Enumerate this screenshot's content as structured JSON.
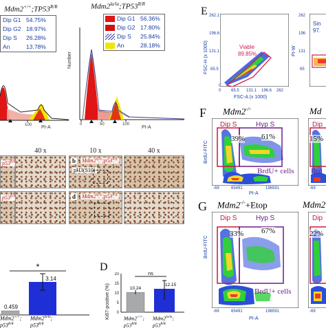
{
  "panelA": {
    "left_genotype": "Mdm2",
    "left_genotype_sup": "+/+",
    "left_genotype_suffix": ";TP53",
    "left_genotype_sup2": "R/R",
    "right_genotype": "Mdm2",
    "right_genotype_sup": "la/la",
    "right_genotype_suffix": ";TP53",
    "right_genotype_sup2": "R/R",
    "left_legend": [
      {
        "label": "Dip G1",
        "value": "54.75%"
      },
      {
        "label": "Dip G2",
        "value": "18.97%"
      },
      {
        "label": "Dip S",
        "value": "26.28%"
      },
      {
        "label": "An",
        "value": "13.78%"
      }
    ],
    "right_legend": [
      {
        "label": "Dip G1",
        "value": "56.36%"
      },
      {
        "label": "Dip G2",
        "value": "17.80%"
      },
      {
        "label": "Dip S",
        "value": "25.84%"
      },
      {
        "label": "An",
        "value": "28.18%"
      }
    ],
    "legend_colors": [
      "#e01515",
      "#d01010",
      "#3a3a9a",
      "#f2e600"
    ],
    "ylabel": "Number",
    "xlabel_left": "PI-A",
    "xlabel_right": "PI-A",
    "x_tick_left": "100",
    "x_ticks_right": [
      "0",
      "50",
      "100"
    ]
  },
  "panelB": {
    "mag_labels": [
      "40 x",
      "10 x",
      "40 x"
    ],
    "letter_b": "b",
    "letter_d": "d",
    "stain_b": "pH3(S10)",
    "geno_b_prefix": "Mdm2",
    "geno_b_sup": "la/la",
    "geno_b_suffix": ";p53",
    "geno_b_sup2": "R/R",
    "geno_d_prefix": "Mdm2",
    "geno_d_sup": "la/la",
    "geno_d_suffix": ";p53",
    "geno_d_sup2": "R/R",
    "left_tag_1": "p53",
    "left_tag_1_sup": "R/R",
    "left_tag_2": "p53",
    "left_tag_2_sup": "R/R"
  },
  "panelC": {
    "significance": "*",
    "value_left": "0.459",
    "value_right": "3.14",
    "cat_left": "Mdm2",
    "cat_left_sup": "+/+",
    "cat_left_suffix": ";",
    "cat_left_line2": "p53",
    "cat_left_line2_sup": "R/R",
    "cat_right": "Mdm2",
    "cat_right_sup": "la/la",
    "cat_right_suffix": ";",
    "cat_right_line2": "p53",
    "cat_right_line2_sup": "R/R",
    "colors": [
      "#a7a9ab",
      "#1f2fd6"
    ]
  },
  "panelD": {
    "letter": "D",
    "significance": "ns",
    "ylabel": "Ki67-positive (%)",
    "y_ticks": [
      "0",
      "5",
      "10",
      "15",
      "20"
    ],
    "value_left": "10.24",
    "value_right": "12.15",
    "cat_left": "Mdm2",
    "cat_left_sup": "+/+",
    "cat_left_suffix": ";",
    "cat_left_line2": "p53",
    "cat_left_line2_sup": "R/R",
    "cat_right": "Mdm2",
    "cat_right_sup": "la/la",
    "cat_right_suffix": ";",
    "cat_right_line2": "p53",
    "cat_right_line2_sup": "R/R",
    "colors": [
      "#a7a9ab",
      "#1f2fd6"
    ]
  },
  "panelE": {
    "letter": "E",
    "gate_label": "Viable",
    "gate_value": "89.85%",
    "ylabel": "FSC-H (x 1000)",
    "xlabel": "FSC-A (x 1000)",
    "y_ticks": [
      "262.1",
      "196.6",
      "131.1",
      "65.5",
      "0"
    ],
    "x_ticks": [
      "0",
      "65.5",
      "131.1",
      "196.6",
      "262"
    ],
    "right_ylabel": "PI-W",
    "right_label": "Sin",
    "right_value": "97.",
    "right_y_ticks": [
      "262",
      "196",
      "131",
      "65"
    ]
  },
  "panelF": {
    "letter": "F",
    "title_left": "Mdm2",
    "title_left_sup": "-/-",
    "title_right": "Md",
    "gate_dip": "Dip S",
    "gate_hyp": "Hyp S",
    "pct_dip": "39%",
    "pct_hyp": "61%",
    "pct_right": "15%",
    "right_gate": "Dip",
    "population": "BrdU+ cells",
    "right_population": "Brd",
    "ylabel": "BrdU-FITC",
    "xlabel": "PI-A",
    "x_ticks": [
      "-69",
      "65491",
      "196591"
    ],
    "right_x_tick": "-69"
  },
  "panelG": {
    "letter": "G",
    "title_left": "Mdm2",
    "title_left_sup": "-/-",
    "title_left_suffix": "+Etop",
    "title_right": "Mdm2",
    "gate_dip": "Dip S",
    "gate_hyp": "Hyp S",
    "pct_dip": "33%",
    "pct_hyp": "67%",
    "right_gate": "Dip",
    "pct_right": "22%",
    "population": "BrdU+ cells",
    "ylabel": "BrdU-FITC",
    "xlabel": "PI-A",
    "x_ticks": [
      "-69",
      "65491",
      "196591"
    ],
    "right_x_tick": "-69"
  }
}
